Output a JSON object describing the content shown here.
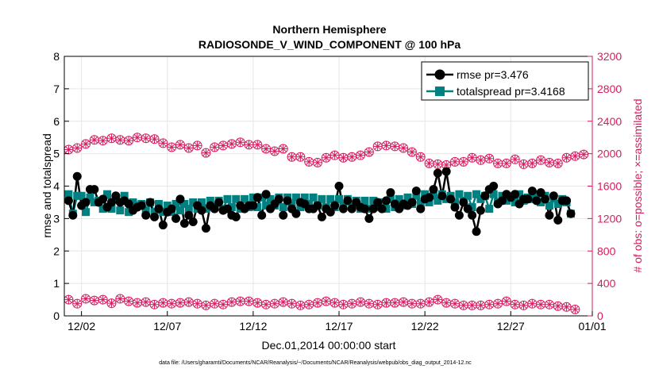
{
  "chart_data": {
    "type": "line",
    "title": "Northern Hemisphere",
    "subtitle": "RADIOSONDE_V_WIND_COMPONENT @ 100 hPa",
    "xlabel": "Dec.01,2014 00:00:00 start",
    "ylabel": "rmse and totalspread",
    "y2label": "# of obs: o=possible; ×=assimilated",
    "footnote": "data file: /Users/gharamti/Documents/NCAR/Reanalysis/~/Documents/NCAR/Reanalysis/webpub/obs_diag_output_2014-12.nc",
    "xlim": [
      0.5,
      31.25
    ],
    "ylim": [
      0,
      8
    ],
    "y2lim": [
      0,
      3200
    ],
    "x_ticks": [
      1.5,
      6.5,
      11.5,
      16.5,
      21.5,
      26.5,
      31.5
    ],
    "x_tick_labels": [
      "12/02",
      "12/07",
      "12/12",
      "12/17",
      "12/22",
      "12/27",
      "01/01"
    ],
    "y_ticks": [
      0,
      1,
      2,
      3,
      4,
      5,
      6,
      7,
      8
    ],
    "y2_ticks": [
      0,
      400,
      800,
      1200,
      1600,
      2000,
      2400,
      2800,
      3200
    ],
    "colors": {
      "rmse": "#000000",
      "totalspread": "#008080",
      "obs": "#d81b60"
    },
    "series": [
      {
        "name": "rmse pr=3.476",
        "key": "rmse",
        "axis": "left",
        "values": [
          3.55,
          3.1,
          4.3,
          3.4,
          3.5,
          3.9,
          3.9,
          3.5,
          3.6,
          3.35,
          3.5,
          3.7,
          3.5,
          3.55,
          3.45,
          3.25,
          3.35,
          3.4,
          3.1,
          3.5,
          3.05,
          3.3,
          2.8,
          3.2,
          3.3,
          3.0,
          3.6,
          2.85,
          3.1,
          2.9,
          3.4,
          3.25,
          2.7,
          3.4,
          3.3,
          3.5,
          3.25,
          3.3,
          3.1,
          3.05,
          3.4,
          3.3,
          3.4,
          3.4,
          3.65,
          3.1,
          3.75,
          3.3,
          3.45,
          3.6,
          3.1,
          3.55,
          3.3,
          3.15,
          3.5,
          3.45,
          3.3,
          3.3,
          3.4,
          3.05,
          3.3,
          3.2,
          3.4,
          4.0,
          3.3,
          3.55,
          3.3,
          3.5,
          3.35,
          3.3,
          3.0,
          3.3,
          3.5,
          3.3,
          3.55,
          3.8,
          3.45,
          3.3,
          3.45,
          3.4,
          3.5,
          3.85,
          3.3,
          3.6,
          3.65,
          3.9,
          4.4,
          3.7,
          4.45,
          3.6,
          3.35,
          3.1,
          3.5,
          3.3,
          3.1,
          2.6,
          3.25,
          3.7,
          3.9,
          4.0,
          3.45,
          3.55,
          3.75,
          3.65,
          3.75,
          3.45,
          3.6,
          3.6,
          3.85,
          3.55,
          3.8,
          3.6,
          3.1,
          3.7,
          2.95,
          3.55,
          3.55,
          3.15
        ]
      },
      {
        "name": "totalspread pr=3.4168",
        "key": "totalspread",
        "axis": "left",
        "values": [
          3.75,
          3.15,
          3.7,
          3.7,
          3.2,
          3.65,
          3.5,
          3.55,
          3.3,
          3.75,
          3.3,
          3.6,
          3.25,
          3.7,
          3.2,
          3.5,
          3.4,
          3.45,
          3.25,
          3.5,
          3.2,
          3.45,
          3.2,
          3.4,
          3.2,
          3.45,
          3.25,
          3.45,
          3.3,
          3.5,
          3.3,
          3.5,
          3.3,
          3.55,
          3.35,
          3.55,
          3.3,
          3.6,
          3.35,
          3.6,
          3.3,
          3.6,
          3.35,
          3.65,
          3.35,
          3.65,
          3.4,
          3.6,
          3.4,
          3.65,
          3.35,
          3.65,
          3.4,
          3.65,
          3.35,
          3.65,
          3.45,
          3.65,
          3.4,
          3.6,
          3.35,
          3.6,
          3.35,
          3.6,
          3.4,
          3.6,
          3.35,
          3.55,
          3.3,
          3.55,
          3.3,
          3.55,
          3.35,
          3.5,
          3.3,
          3.6,
          3.35,
          3.6,
          3.4,
          3.65,
          3.45,
          3.7,
          3.45,
          3.75,
          3.5,
          3.7,
          3.55,
          3.75,
          3.6,
          3.7,
          3.5,
          3.75,
          3.55,
          3.7,
          3.35,
          3.75,
          3.6,
          3.7,
          3.3,
          3.75,
          3.5,
          3.7,
          3.55,
          3.7,
          3.5,
          3.75,
          3.55,
          3.65,
          3.6,
          3.75,
          3.5,
          3.7,
          3.4,
          3.65,
          3.45,
          3.6,
          3.5,
          3.15
        ]
      },
      {
        "name": "possible",
        "key": "obs_possible",
        "axis": "right",
        "marker": "circle",
        "values": [
          2050,
          2080,
          2070,
          2100,
          2120,
          2110,
          2170,
          2100,
          2160,
          2140,
          2190,
          2210,
          2170,
          2180,
          2160,
          2190,
          2200,
          2200,
          2190,
          2190,
          2180,
          2150,
          2130,
          2090,
          2080,
          2050,
          2110,
          2080,
          2070,
          2090,
          2100,
          2060,
          2010,
          2100,
          2080,
          2060,
          2100,
          2130,
          2120,
          2120,
          2140,
          2130,
          2110,
          2100,
          2110,
          2070,
          2060,
          2040,
          2030,
          2050,
          2060,
          1980,
          1960,
          1970,
          1960,
          1930,
          1900,
          1880,
          1890,
          1910,
          1950,
          1970,
          1980,
          1940,
          1950,
          1990,
          1960,
          1990,
          1980,
          2000,
          2020,
          2050,
          2090,
          2060,
          2100,
          2080,
          2090,
          2070,
          2070,
          2050,
          2020,
          2000,
          1960,
          1930,
          1880,
          1860,
          1870,
          1860,
          1860,
          1890,
          1900,
          1890,
          1900,
          1930,
          1950,
          1890,
          1920,
          1920,
          1940,
          1920,
          1880,
          1870,
          1880,
          1920,
          1930,
          1900,
          1870,
          1950,
          1880,
          1900,
          1920,
          1890,
          1890,
          1900,
          1880,
          1890,
          1950,
          1930,
          1970,
          1920,
          1990
        ]
      },
      {
        "name": "assimilated",
        "key": "obs_assimilated",
        "axis": "right",
        "marker": "x",
        "values": [
          200,
          185,
          150,
          220,
          210,
          230,
          190,
          250,
          200,
          215,
          155,
          230,
          210,
          195,
          180,
          170,
          160,
          150,
          170,
          160,
          140,
          150,
          160,
          150,
          150,
          140,
          160,
          160,
          170,
          180,
          150,
          140,
          130,
          160,
          150,
          160,
          140,
          180,
          170,
          165,
          180,
          200,
          180,
          170,
          160,
          150,
          140,
          150,
          150,
          170,
          170,
          160,
          150,
          140,
          130,
          130,
          140,
          150,
          160,
          170,
          180,
          170,
          160,
          150,
          140,
          140,
          150,
          170,
          170,
          160,
          150,
          140,
          140,
          150,
          160,
          160,
          160,
          170,
          170,
          150,
          150,
          140,
          150,
          160,
          170,
          180,
          200,
          180,
          160,
          150,
          150,
          130,
          130,
          120,
          130,
          130,
          130,
          120,
          140,
          140,
          150,
          160,
          180,
          160,
          140,
          130,
          130,
          130,
          150,
          160,
          140,
          120,
          140,
          130,
          120,
          100,
          110,
          100,
          80,
          30
        ]
      }
    ],
    "legend": [
      {
        "key": "rmse",
        "label": "rmse pr=3.476"
      },
      {
        "key": "totalspread",
        "label": "totalspread pr=3.4168"
      }
    ],
    "legend_placement": "top-right",
    "grid": true
  }
}
